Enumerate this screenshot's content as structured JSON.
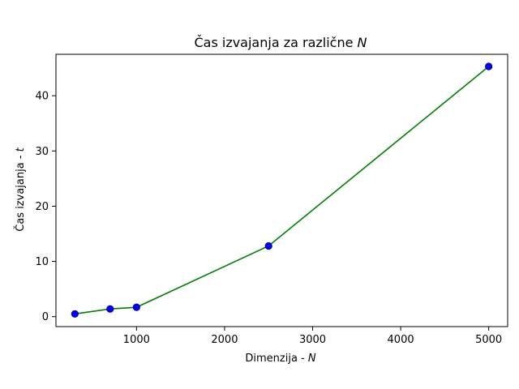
{
  "chart_data": {
    "type": "line",
    "title": "Čas izvajanja za različne",
    "title_var": "N",
    "xlabel": "Dimenzija - ",
    "xlabel_var": "N",
    "ylabel": "Čas izvajanja - ",
    "ylabel_var": "t",
    "xlim": [
      85,
      5215
    ],
    "ylim": [
      -1.8,
      47.5
    ],
    "xticks": [
      1000,
      2000,
      3000,
      4000,
      5000
    ],
    "yticks": [
      0,
      10,
      20,
      30,
      40
    ],
    "grid": false,
    "line_color": "#008000",
    "marker_color": "#0000ff",
    "marker_edge_color": "#000080",
    "x": [
      300,
      700,
      1000,
      2500,
      5000
    ],
    "y": [
      0.5,
      1.4,
      1.7,
      12.8,
      45.3
    ]
  }
}
